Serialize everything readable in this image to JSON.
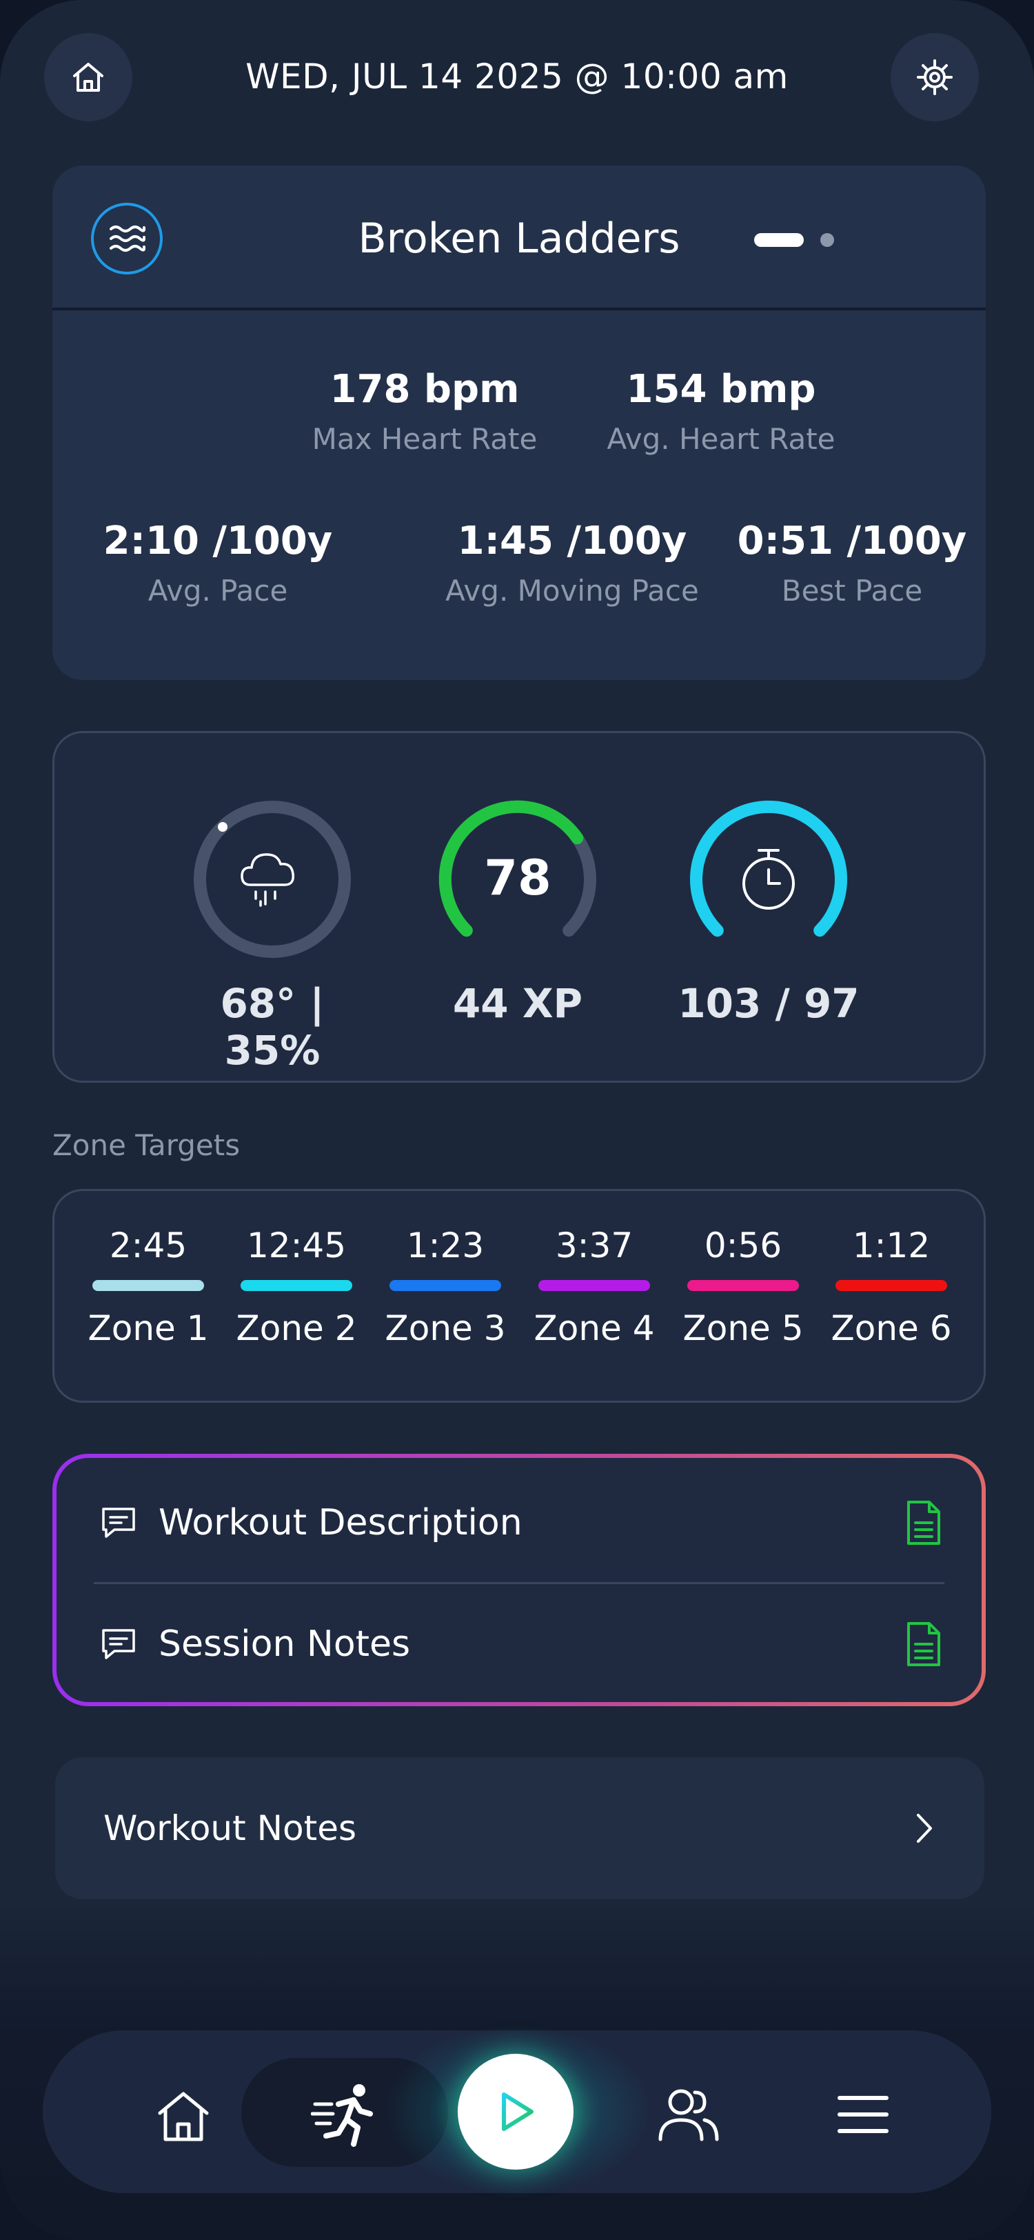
{
  "header": {
    "datetime": "WED, JUL 14 2025 @ 10:00 am",
    "left_icon": "home-icon",
    "right_icon": "gear-icon"
  },
  "workout": {
    "title": "Broken Ladders",
    "icon": "waves-icon",
    "page_indicator": {
      "pages": 2,
      "active": 0
    },
    "stats_row1": [
      {
        "value": "178 bpm",
        "label": "Max Heart Rate"
      },
      {
        "value": "154 bmp",
        "label": "Avg. Heart Rate"
      }
    ],
    "stats_row2": [
      {
        "value": "2:10 /100y",
        "label": "Avg. Pace"
      },
      {
        "value": "1:45 /100y",
        "label": "Avg. Moving Pace"
      },
      {
        "value": "0:51 /100y",
        "label": "Best Pace"
      }
    ]
  },
  "gauges": [
    {
      "icon": "rain-cloud-icon",
      "label": "68° | 35%",
      "color": "#46536a"
    },
    {
      "center": "78",
      "label": "44 XP",
      "color": "#22c542",
      "fraction": 0.65
    },
    {
      "icon": "stopwatch-icon",
      "label": "103 / 97",
      "color": "#1fd0f0"
    }
  ],
  "zones": {
    "title": "Zone Targets",
    "items": [
      {
        "time": "2:45",
        "name": "Zone 1",
        "color": "#a9dfea"
      },
      {
        "time": "12:45",
        "name": "Zone 2",
        "color": "#1ad8ee"
      },
      {
        "time": "1:23",
        "name": "Zone 3",
        "color": "#1a78f0"
      },
      {
        "time": "3:37",
        "name": "Zone 4",
        "color": "#b51be6"
      },
      {
        "time": "0:56",
        "name": "Zone 5",
        "color": "#ec1a8b"
      },
      {
        "time": "1:12",
        "name": "Zone 6",
        "color": "#ef1111"
      }
    ]
  },
  "notes": {
    "items": [
      {
        "label": "Workout Description",
        "icon": "chat-icon",
        "doc_icon": "document-icon"
      },
      {
        "label": "Session Notes",
        "icon": "chat-icon",
        "doc_icon": "document-icon"
      }
    ]
  },
  "workout_notes": {
    "label": "Workout Notes"
  },
  "tabbar": {
    "items": [
      "home-icon",
      "running-icon",
      "play-icon",
      "users-icon",
      "menu-icon"
    ],
    "active": 1
  }
}
